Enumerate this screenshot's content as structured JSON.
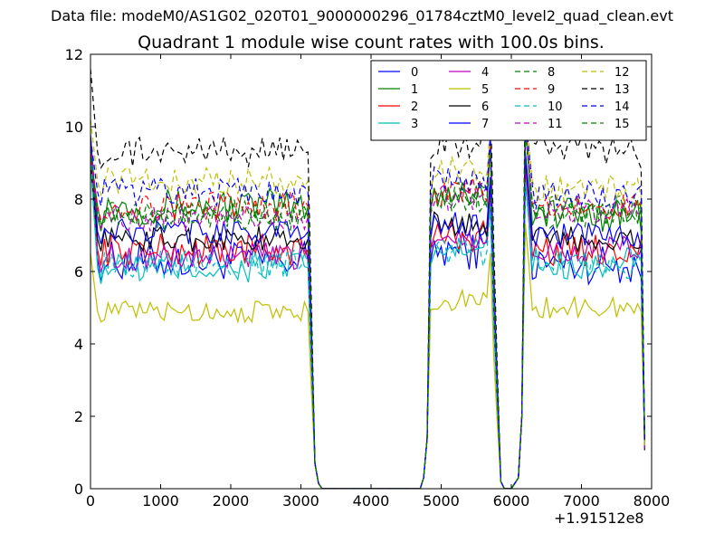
{
  "figure": {
    "suptitle": "Data file: modeM0/AS1G02_020T01_9000000296_01784cztM0_level2_quad_clean.evt"
  },
  "chart_data": {
    "type": "line",
    "title": "Quadrant 1 module wise count rates with 100.0s bins.",
    "xlabel": "",
    "ylabel": "",
    "xlim": [
      0,
      8000
    ],
    "ylim": [
      0,
      12
    ],
    "x_offset_label": "+1.91512e8",
    "x_ticks": [
      0,
      1000,
      2000,
      3000,
      4000,
      5000,
      6000,
      7000,
      8000
    ],
    "y_ticks": [
      0,
      2,
      4,
      6,
      8,
      10,
      12
    ],
    "grid": false,
    "legend_position": "top-right",
    "legend_columns": 4,
    "segments_x": [
      [
        0,
        50,
        100,
        150,
        200,
        250,
        300,
        350,
        400,
        450,
        500,
        550,
        600,
        650,
        700,
        750,
        800,
        850,
        900,
        950,
        1000,
        1050,
        1100,
        1150,
        1200,
        1250,
        1300,
        1350,
        1400,
        1450,
        1500,
        1550,
        1600,
        1650,
        1700,
        1750,
        1800,
        1850,
        1900,
        1950,
        2000,
        2050,
        2100,
        2150,
        2200,
        2250,
        2300,
        2350,
        2400,
        2450,
        2500,
        2550,
        2600,
        2650,
        2700,
        2750,
        2800,
        2850,
        2900,
        2950,
        3000,
        3050,
        3100,
        3150,
        3200,
        3250,
        3300
      ],
      [
        3300,
        3400,
        3500,
        3600,
        3700,
        3800,
        3900,
        4000,
        4100,
        4200,
        4300,
        4400,
        4500,
        4600,
        4700
      ],
      [
        4700,
        4750,
        4800,
        4850,
        4900,
        4950,
        5000,
        5050,
        5100,
        5150,
        5200,
        5250,
        5300,
        5350,
        5400,
        5450,
        5500,
        5550,
        5600,
        5650,
        5700,
        5750,
        5800,
        5850,
        5900
      ],
      [
        5900,
        6000,
        6100,
        6150,
        6200,
        6250,
        6300,
        6350,
        6400,
        6450,
        6500,
        6550,
        6600,
        6650,
        6700,
        6750,
        6800,
        6850,
        6900,
        6950,
        7000,
        7050,
        7100,
        7150,
        7200,
        7250,
        7300,
        7350,
        7400,
        7450,
        7500,
        7550,
        7600,
        7650,
        7700,
        7750,
        7800,
        7850,
        7900
      ]
    ],
    "series": [
      {
        "name": "0",
        "color": "#0000ff",
        "dash": "solid",
        "level1": 6.3,
        "level2": 6.6,
        "level3": 6.2,
        "start": 9.6,
        "jitter": 0.55
      },
      {
        "name": "1",
        "color": "#008000",
        "dash": "solid",
        "level1": 7.8,
        "level2": 8.2,
        "level3": 7.6,
        "start": 9.2,
        "jitter": 0.5
      },
      {
        "name": "2",
        "color": "#ff0000",
        "dash": "solid",
        "level1": 6.6,
        "level2": 7.0,
        "level3": 6.6,
        "start": 9.4,
        "jitter": 0.45
      },
      {
        "name": "3",
        "color": "#00bfbf",
        "dash": "solid",
        "level1": 6.1,
        "level2": 6.6,
        "level3": 6.2,
        "start": 9.0,
        "jitter": 0.45
      },
      {
        "name": "4",
        "color": "#bf00bf",
        "dash": "solid",
        "level1": 6.4,
        "level2": 7.0,
        "level3": 6.6,
        "start": 9.3,
        "jitter": 0.4
      },
      {
        "name": "5",
        "color": "#bfbf00",
        "dash": "solid",
        "level1": 4.9,
        "level2": 5.2,
        "level3": 5.0,
        "start": 6.5,
        "jitter": 0.3
      },
      {
        "name": "6",
        "color": "#000000",
        "dash": "solid",
        "level1": 6.9,
        "level2": 7.3,
        "level3": 6.9,
        "start": 9.0,
        "jitter": 0.35
      },
      {
        "name": "7",
        "color": "#0000ff",
        "dash": "solid",
        "level1": 7.1,
        "level2": 7.3,
        "level3": 7.0,
        "start": 9.8,
        "jitter": 0.35
      },
      {
        "name": "8",
        "color": "#008000",
        "dash": "dashed",
        "level1": 7.6,
        "level2": 8.1,
        "level3": 7.7,
        "start": 9.5,
        "jitter": 0.4
      },
      {
        "name": "9",
        "color": "#ff0000",
        "dash": "dashed",
        "level1": 7.8,
        "level2": 8.2,
        "level3": 7.8,
        "start": 9.3,
        "jitter": 0.4
      },
      {
        "name": "10",
        "color": "#00bfbf",
        "dash": "dashed",
        "level1": 6.2,
        "level2": 6.5,
        "level3": 6.2,
        "start": 9.2,
        "jitter": 0.4
      },
      {
        "name": "11",
        "color": "#bf00bf",
        "dash": "dashed",
        "level1": 7.5,
        "level2": 8.0,
        "level3": 7.7,
        "start": 9.5,
        "jitter": 0.4
      },
      {
        "name": "12",
        "color": "#bfbf00",
        "dash": "dashed",
        "level1": 8.5,
        "level2": 8.8,
        "level3": 8.3,
        "start": 10.2,
        "jitter": 0.4
      },
      {
        "name": "13",
        "color": "#000000",
        "dash": "dashed",
        "level1": 9.3,
        "level2": 9.6,
        "level3": 9.3,
        "start": 11.6,
        "jitter": 0.45
      },
      {
        "name": "14",
        "color": "#0000ff",
        "dash": "dashed",
        "level1": 8.2,
        "level2": 8.5,
        "level3": 8.1,
        "start": 9.7,
        "jitter": 0.4
      },
      {
        "name": "15",
        "color": "#008000",
        "dash": "dashed",
        "level1": 7.5,
        "level2": 8.0,
        "level3": 7.6,
        "start": 9.4,
        "jitter": 0.4
      }
    ]
  }
}
